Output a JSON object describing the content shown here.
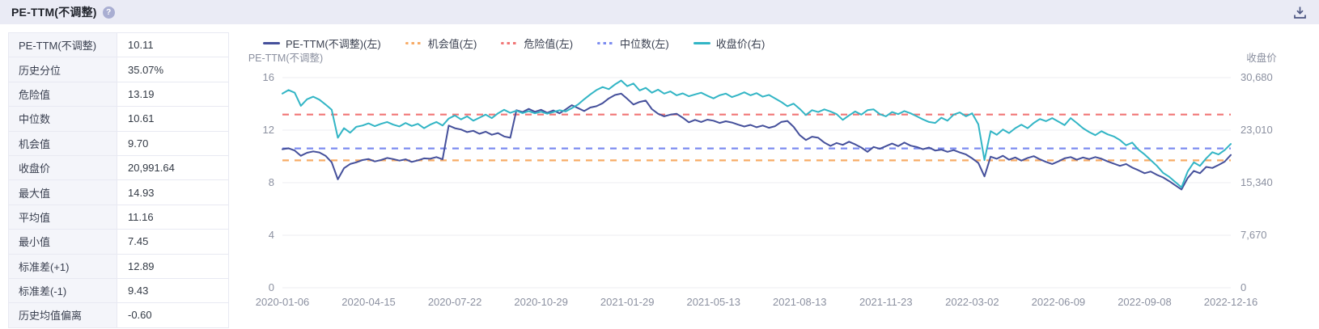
{
  "header": {
    "title": "PE-TTM(不调整)",
    "help_icon": "?",
    "download_icon": "download-tray-arrow"
  },
  "stats_table": {
    "rows": [
      {
        "label": "PE-TTM(不调整)",
        "value": "10.11"
      },
      {
        "label": "历史分位",
        "value": "35.07%"
      },
      {
        "label": "危险值",
        "value": "13.19"
      },
      {
        "label": "中位数",
        "value": "10.61"
      },
      {
        "label": "机会值",
        "value": "9.70"
      },
      {
        "label": "收盘价",
        "value": "20,991.64"
      },
      {
        "label": "最大值",
        "value": "14.93"
      },
      {
        "label": "平均值",
        "value": "11.16"
      },
      {
        "label": "最小值",
        "value": "7.45"
      },
      {
        "label": "标准差(+1)",
        "value": "12.89"
      },
      {
        "label": "标准差(-1)",
        "value": "9.43"
      },
      {
        "label": "历史均值偏离",
        "value": "-0.60"
      }
    ]
  },
  "chart_data": {
    "type": "line",
    "left_axis": {
      "label": "PE-TTM(不调整)",
      "ticks": [
        0,
        4,
        8,
        12,
        16
      ],
      "tick_labels": [
        "0",
        "4",
        "8",
        "12",
        "16"
      ],
      "max": 16
    },
    "right_axis": {
      "label": "收盘价",
      "ticks": [
        0,
        7670,
        15340,
        23010,
        30680
      ],
      "tick_labels": [
        "0",
        "7,670",
        "15,340",
        "23,010",
        "30,680"
      ],
      "max": 30680
    },
    "x_tick_labels": [
      "2020-01-06",
      "2020-04-15",
      "2020-07-22",
      "2020-10-29",
      "2021-01-29",
      "2021-05-13",
      "2021-08-13",
      "2021-11-23",
      "2022-03-02",
      "2022-06-09",
      "2022-09-08",
      "2022-12-16"
    ],
    "grid": true,
    "legend_position": "top",
    "legend": [
      {
        "label": "PE-TTM(不调整)(左)",
        "color": "#45509b",
        "style": "solid"
      },
      {
        "label": "机会值(左)",
        "color": "#f7ab66",
        "style": "dashed"
      },
      {
        "label": "危险值(左)",
        "color": "#f17676",
        "style": "dashed"
      },
      {
        "label": "中位数(左)",
        "color": "#7c8cf0",
        "style": "dashed"
      },
      {
        "label": "收盘价(右)",
        "color": "#32b5c5",
        "style": "solid"
      }
    ],
    "reference_lines": [
      {
        "name": "危险值",
        "axis": "left",
        "value": 13.19,
        "color": "#f17676"
      },
      {
        "name": "中位数",
        "axis": "left",
        "value": 10.61,
        "color": "#7c8cf0"
      },
      {
        "name": "机会值",
        "axis": "left",
        "value": 9.7,
        "color": "#f7ab66"
      }
    ],
    "series": [
      {
        "name": "PE-TTM(不调整)(左)",
        "axis": "left",
        "color": "#45509b",
        "values": [
          10.55,
          10.62,
          10.45,
          10.05,
          10.28,
          10.38,
          10.3,
          10.05,
          9.55,
          8.25,
          9.1,
          9.42,
          9.55,
          9.72,
          9.8,
          9.62,
          9.72,
          9.88,
          9.8,
          9.68,
          9.78,
          9.58,
          9.7,
          9.85,
          9.82,
          9.95,
          9.78,
          12.35,
          12.15,
          12.05,
          11.85,
          11.95,
          11.72,
          11.88,
          11.65,
          11.78,
          11.52,
          11.42,
          13.52,
          13.38,
          13.62,
          13.4,
          13.55,
          13.32,
          13.5,
          13.28,
          13.58,
          13.9,
          13.68,
          13.45,
          13.72,
          13.82,
          14.05,
          14.42,
          14.68,
          14.78,
          14.38,
          13.95,
          14.15,
          14.25,
          13.6,
          13.25,
          13.05,
          13.18,
          13.25,
          12.95,
          12.6,
          12.78,
          12.62,
          12.8,
          12.72,
          12.55,
          12.68,
          12.58,
          12.42,
          12.28,
          12.4,
          12.22,
          12.35,
          12.18,
          12.3,
          12.62,
          12.7,
          12.25,
          11.62,
          11.25,
          11.5,
          11.42,
          11.05,
          10.8,
          11.02,
          10.88,
          11.12,
          10.92,
          10.68,
          10.35,
          10.72,
          10.58,
          10.78,
          10.98,
          10.78,
          11.05,
          10.82,
          10.72,
          10.55,
          10.68,
          10.45,
          10.52,
          10.35,
          10.48,
          10.3,
          10.15,
          9.85,
          9.5,
          8.48,
          9.98,
          9.82,
          10.05,
          9.75,
          9.92,
          9.68,
          9.88,
          10.02,
          9.78,
          9.58,
          9.42,
          9.62,
          9.85,
          9.95,
          9.75,
          9.92,
          9.8,
          9.95,
          9.82,
          9.62,
          9.45,
          9.28,
          9.42,
          9.15,
          8.95,
          8.72,
          8.85,
          8.6,
          8.4,
          8.12,
          7.8,
          7.48,
          8.35,
          8.9,
          8.72,
          9.2,
          9.12,
          9.35,
          9.6,
          10.11
        ]
      },
      {
        "name": "收盘价(右)",
        "axis": "right",
        "color": "#32b5c5",
        "values": [
          28341,
          28858,
          28475,
          26557,
          27516,
          27900,
          27459,
          26749,
          25982,
          21898,
          23298,
          22627,
          23489,
          23681,
          24007,
          23585,
          23930,
          24199,
          23815,
          23547,
          24065,
          23624,
          23930,
          23298,
          23815,
          24199,
          23681,
          24697,
          25158,
          24582,
          25023,
          24391,
          24832,
          25273,
          24774,
          25464,
          25982,
          25541,
          25848,
          25503,
          25790,
          25464,
          25695,
          25407,
          25656,
          25925,
          25733,
          26231,
          26749,
          27516,
          28226,
          28858,
          29299,
          28993,
          29683,
          30258,
          29434,
          29817,
          28801,
          29184,
          28475,
          28916,
          28341,
          28667,
          28091,
          28379,
          27957,
          28226,
          28475,
          28034,
          27650,
          28091,
          28341,
          27842,
          28149,
          28532,
          28091,
          28417,
          27900,
          28149,
          27650,
          27133,
          26500,
          26883,
          26116,
          25215,
          25925,
          25656,
          26040,
          25733,
          25349,
          24506,
          25158,
          25733,
          25273,
          25925,
          26040,
          25349,
          25023,
          25656,
          25349,
          25790,
          25464,
          25023,
          24582,
          24199,
          24065,
          24832,
          24391,
          25273,
          25599,
          25023,
          25464,
          23873,
          18638,
          22857,
          22339,
          23106,
          22588,
          23298,
          23815,
          23298,
          24065,
          24640,
          24314,
          24774,
          24256,
          23739,
          24774,
          24065,
          23298,
          22722,
          22281,
          22857,
          22396,
          22090,
          21572,
          20805,
          21189,
          20172,
          19463,
          18638,
          17794,
          16782,
          16203,
          15436,
          14669,
          16970,
          18312,
          17794,
          18887,
          19789,
          19463,
          20095,
          20992
        ]
      }
    ],
    "colors": {
      "grid": "#ececf2",
      "axis_text": "#8b90a0",
      "header_bg": "#eaebf5"
    }
  }
}
